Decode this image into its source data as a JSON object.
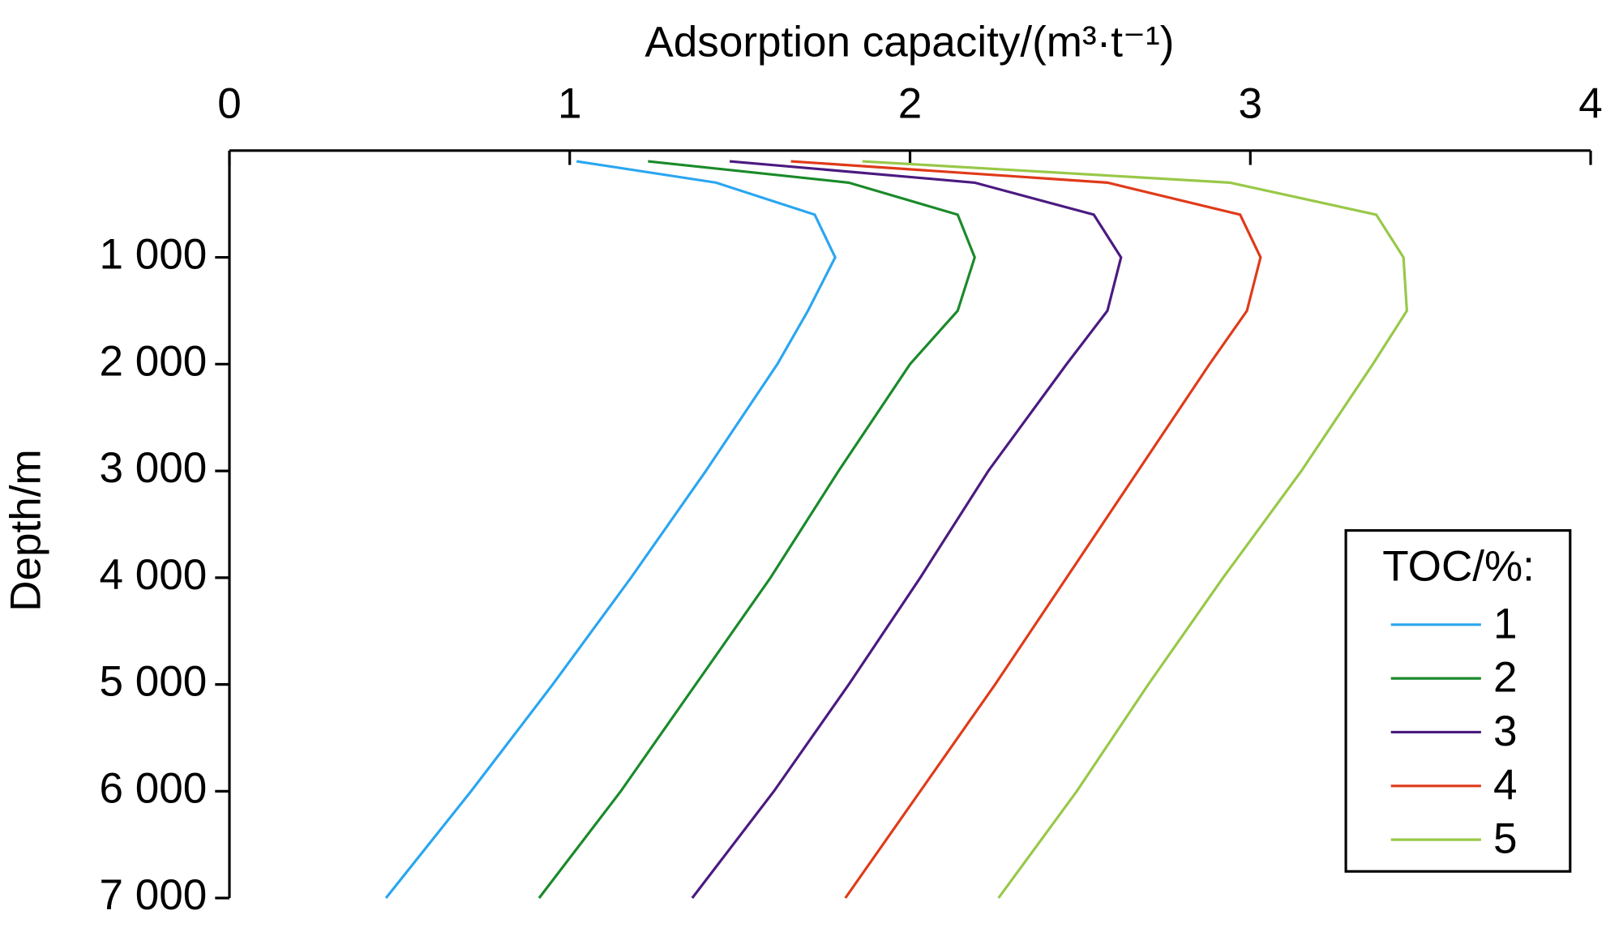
{
  "chart_data": {
    "type": "line",
    "x_label": "Adsorption capacity/(m³·t⁻¹)",
    "y_label": "Depth/m",
    "xlim": [
      0,
      4
    ],
    "xticks": [
      0,
      1,
      2,
      3,
      4
    ],
    "ylim": [
      0,
      7000
    ],
    "yticks": [
      {
        "value": 1000,
        "label": "1 000"
      },
      {
        "value": 2000,
        "label": "2 000"
      },
      {
        "value": 3000,
        "label": "3 000"
      },
      {
        "value": 4000,
        "label": "4 000"
      },
      {
        "value": 5000,
        "label": "5 000"
      },
      {
        "value": 6000,
        "label": "6 000"
      },
      {
        "value": 7000,
        "label": "7 000"
      }
    ],
    "depths": [
      100,
      300,
      600,
      1000,
      1500,
      2000,
      3000,
      4000,
      5000,
      6000,
      7000
    ],
    "legend_title": "TOC/%:",
    "legend_position": "lower right",
    "series": [
      {
        "name": "1",
        "color": "#2aa6f0",
        "values": [
          1.02,
          1.43,
          1.72,
          1.78,
          1.7,
          1.61,
          1.4,
          1.18,
          0.95,
          0.71,
          0.46
        ]
      },
      {
        "name": "2",
        "color": "#1a8a2a",
        "values": [
          1.23,
          1.82,
          2.14,
          2.19,
          2.14,
          2.0,
          1.79,
          1.59,
          1.37,
          1.15,
          0.91
        ]
      },
      {
        "name": "3",
        "color": "#4b1a80",
        "values": [
          1.47,
          2.19,
          2.54,
          2.62,
          2.58,
          2.46,
          2.23,
          2.03,
          1.82,
          1.6,
          1.36
        ]
      },
      {
        "name": "4",
        "color": "#e03a1a",
        "values": [
          1.65,
          2.58,
          2.97,
          3.03,
          2.99,
          2.88,
          2.67,
          2.46,
          2.25,
          2.03,
          1.81
        ]
      },
      {
        "name": "5",
        "color": "#98c848",
        "values": [
          1.86,
          2.94,
          3.37,
          3.45,
          3.46,
          3.36,
          3.15,
          2.92,
          2.7,
          2.49,
          2.26
        ]
      }
    ]
  }
}
